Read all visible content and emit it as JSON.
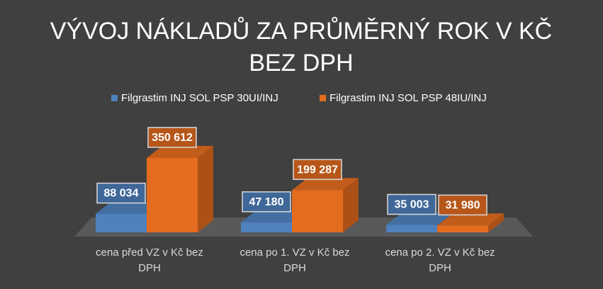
{
  "chart_data": {
    "type": "bar",
    "title_lines": [
      "VÝVOJ NÁKLADŮ ZA PRŮMĚRNÝ ROK V KČ",
      "BEZ DPH"
    ],
    "categories": [
      [
        "cena před VZ v Kč bez",
        "DPH"
      ],
      [
        "cena po 1. VZ v Kč bez",
        "DPH"
      ],
      [
        "cena po 2. VZ v Kč bez",
        "DPH"
      ]
    ],
    "series": [
      {
        "name": "Filgrastim  INJ SOL PSP 30UI/INJ",
        "values": [
          88034,
          47180,
          35003
        ],
        "labels": [
          "88 034",
          "47 180",
          "35 003"
        ],
        "color": "#4f81bd"
      },
      {
        "name": "Filgrastim  INJ SOL PSP 48IU/INJ",
        "values": [
          350612,
          199287,
          31980
        ],
        "labels": [
          "350 612",
          "199 287",
          "31 980"
        ],
        "color": "#e46c1f"
      }
    ],
    "ylim": [
      0,
      350612
    ],
    "legend_position": "top",
    "grid": false,
    "style": "3d-clustered-column"
  }
}
